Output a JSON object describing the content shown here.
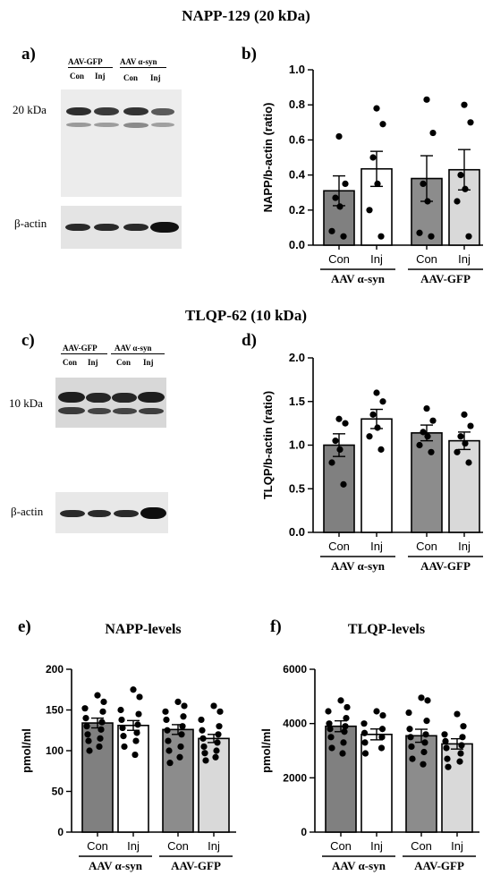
{
  "sections": {
    "napp_title": "NAPP-129 (20 kDa)",
    "tlqp_title": "TLQP-62 (10 kDa)"
  },
  "panels": {
    "a": "a)",
    "b": "b)",
    "c": "c)",
    "d": "d)",
    "e": "e)",
    "f": "f)"
  },
  "blot_a": {
    "group1": "AAV-GFP",
    "group2": "AAV α-syn",
    "lanes": [
      "Con",
      "Inj",
      "Con",
      "Inj"
    ],
    "mw_label": "20 kDa",
    "actin_label": "β-actin"
  },
  "blot_c": {
    "group1": "AAV-GFP",
    "group2": "AAV α-syn",
    "lanes": [
      "Con",
      "Inj",
      "Con",
      "Inj"
    ],
    "mw_label": "10 kDa",
    "actin_label": "β-actin"
  },
  "colors": {
    "con": "#808080",
    "inj_syn": "#ffffff",
    "con_gfp": "#8c8c8c",
    "inj_gfp": "#d9d9d9"
  },
  "chart_data": [
    {
      "id": "b",
      "type": "bar",
      "ylabel": "NAPP/b-actin (ratio)",
      "ylim": [
        0,
        1.0
      ],
      "yticks": [
        "0.0",
        "0.2",
        "0.4",
        "0.6",
        "0.8",
        "1.0"
      ],
      "categories": [
        "Con",
        "Inj",
        "Con",
        "Inj"
      ],
      "groups": [
        "AAV α-syn",
        "AAV-GFP"
      ],
      "values": [
        0.31,
        0.435,
        0.38,
        0.43
      ],
      "sem": [
        0.085,
        0.1,
        0.13,
        0.115
      ],
      "points": [
        [
          0.62,
          0.35,
          0.27,
          0.22,
          0.08,
          0.05
        ],
        [
          0.78,
          0.69,
          0.5,
          0.35,
          0.2,
          0.05
        ],
        [
          0.83,
          0.64,
          0.35,
          0.25,
          0.07,
          0.05
        ],
        [
          0.8,
          0.7,
          0.4,
          0.32,
          0.25,
          0.05
        ]
      ]
    },
    {
      "id": "d",
      "type": "bar",
      "ylabel": "TLQP/b-actin (ratio)",
      "ylim": [
        0,
        2.0
      ],
      "yticks": [
        "0.0",
        "0.5",
        "1.0",
        "1.5",
        "2.0"
      ],
      "categories": [
        "Con",
        "Inj",
        "Con",
        "Inj"
      ],
      "groups": [
        "AAV α-syn",
        "AAV-GFP"
      ],
      "values": [
        1.0,
        1.3,
        1.14,
        1.05
      ],
      "sem": [
        0.13,
        0.11,
        0.09,
        0.1
      ],
      "points": [
        [
          1.3,
          1.25,
          1.05,
          0.95,
          0.8,
          0.55
        ],
        [
          1.6,
          1.5,
          1.35,
          1.2,
          1.1,
          0.95
        ],
        [
          1.42,
          1.28,
          1.15,
          1.1,
          1.0,
          0.92
        ],
        [
          1.35,
          1.22,
          1.1,
          1.02,
          0.92,
          0.8
        ]
      ]
    },
    {
      "id": "e",
      "type": "bar",
      "title": "NAPP-levels",
      "ylabel": "pmol/ml",
      "ylim": [
        0,
        200
      ],
      "yticks": [
        "0",
        "50",
        "100",
        "150",
        "200"
      ],
      "categories": [
        "Con",
        "Inj",
        "Con",
        "Inj"
      ],
      "groups": [
        "AAV α-syn",
        "AAV-GFP"
      ],
      "values": [
        134,
        131,
        126,
        115
      ],
      "sem": [
        6,
        6,
        6,
        5
      ],
      "points": [
        [
          168,
          160,
          152,
          148,
          140,
          135,
          130,
          126,
          120,
          115,
          112,
          105,
          100
        ],
        [
          175,
          166,
          150,
          145,
          138,
          132,
          128,
          122,
          118,
          112,
          105,
          95
        ],
        [
          160,
          155,
          148,
          142,
          138,
          130,
          125,
          120,
          112,
          105,
          100,
          92,
          85
        ],
        [
          155,
          148,
          138,
          130,
          125,
          120,
          115,
          110,
          105,
          100,
          97,
          92,
          88
        ]
      ]
    },
    {
      "id": "f",
      "type": "bar",
      "title": "TLQP-levels",
      "ylabel": "pmol/ml",
      "ylim": [
        0,
        6000
      ],
      "yticks": [
        "0",
        "2000",
        "4000",
        "6000"
      ],
      "categories": [
        "Con",
        "Inj",
        "Con",
        "Inj"
      ],
      "groups": [
        "AAV α-syn",
        "AAV-GFP"
      ],
      "values": [
        3900,
        3600,
        3550,
        3250
      ],
      "sem": [
        200,
        200,
        240,
        190
      ],
      "points": [
        [
          4850,
          4600,
          4450,
          4200,
          4000,
          3900,
          3800,
          3700,
          3500,
          3300,
          3100,
          2900
        ],
        [
          4450,
          4300,
          4000,
          3800,
          3650,
          3500,
          3300,
          3100,
          2900
        ],
        [
          4950,
          4850,
          4400,
          4100,
          3800,
          3600,
          3500,
          3300,
          3150,
          2950,
          2700,
          2500
        ],
        [
          4350,
          3900,
          3600,
          3500,
          3350,
          3200,
          3100,
          2900,
          2700,
          2600,
          2400
        ]
      ]
    }
  ]
}
